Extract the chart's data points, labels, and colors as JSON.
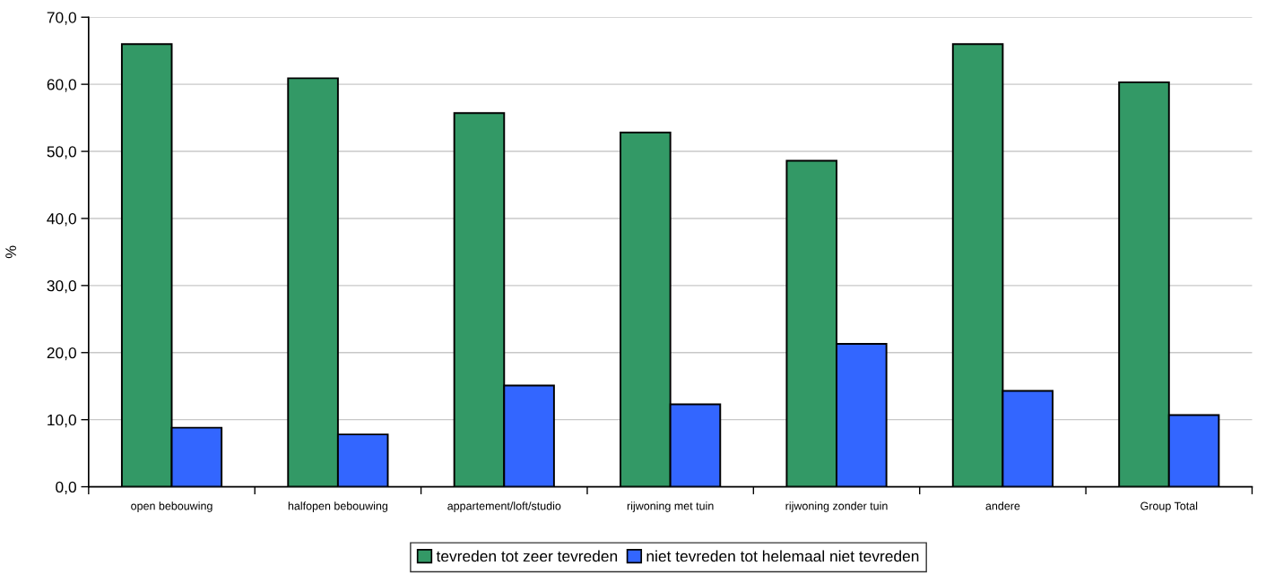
{
  "chart_data": {
    "type": "bar",
    "ylabel": "%",
    "categories": [
      "open bebouwing",
      "halfopen bebouwing",
      "appartement/loft/studio",
      "rijwoning met tuin",
      "rijwoning zonder tuin",
      "andere",
      "Group Total"
    ],
    "series": [
      {
        "name": "tevreden tot zeer tevreden",
        "color": "#339966",
        "values": [
          66.0,
          60.9,
          55.7,
          52.8,
          48.6,
          66.0,
          60.3
        ]
      },
      {
        "name": "niet tevreden tot helemaal niet tevreden",
        "color": "#3366ff",
        "values": [
          8.8,
          7.8,
          15.1,
          12.3,
          21.3,
          14.3,
          10.7
        ]
      }
    ],
    "ylim": [
      0,
      70
    ],
    "yticks": [
      {
        "value": 0,
        "label": "0,0"
      },
      {
        "value": 10,
        "label": "10,0"
      },
      {
        "value": 20,
        "label": "20,0"
      },
      {
        "value": 30,
        "label": "30,0"
      },
      {
        "value": 40,
        "label": "40,0"
      },
      {
        "value": 50,
        "label": "50,0"
      },
      {
        "value": 60,
        "label": "60,0"
      },
      {
        "value": 70,
        "label": "70,0"
      }
    ],
    "grid": "y",
    "legend": "bottom"
  }
}
